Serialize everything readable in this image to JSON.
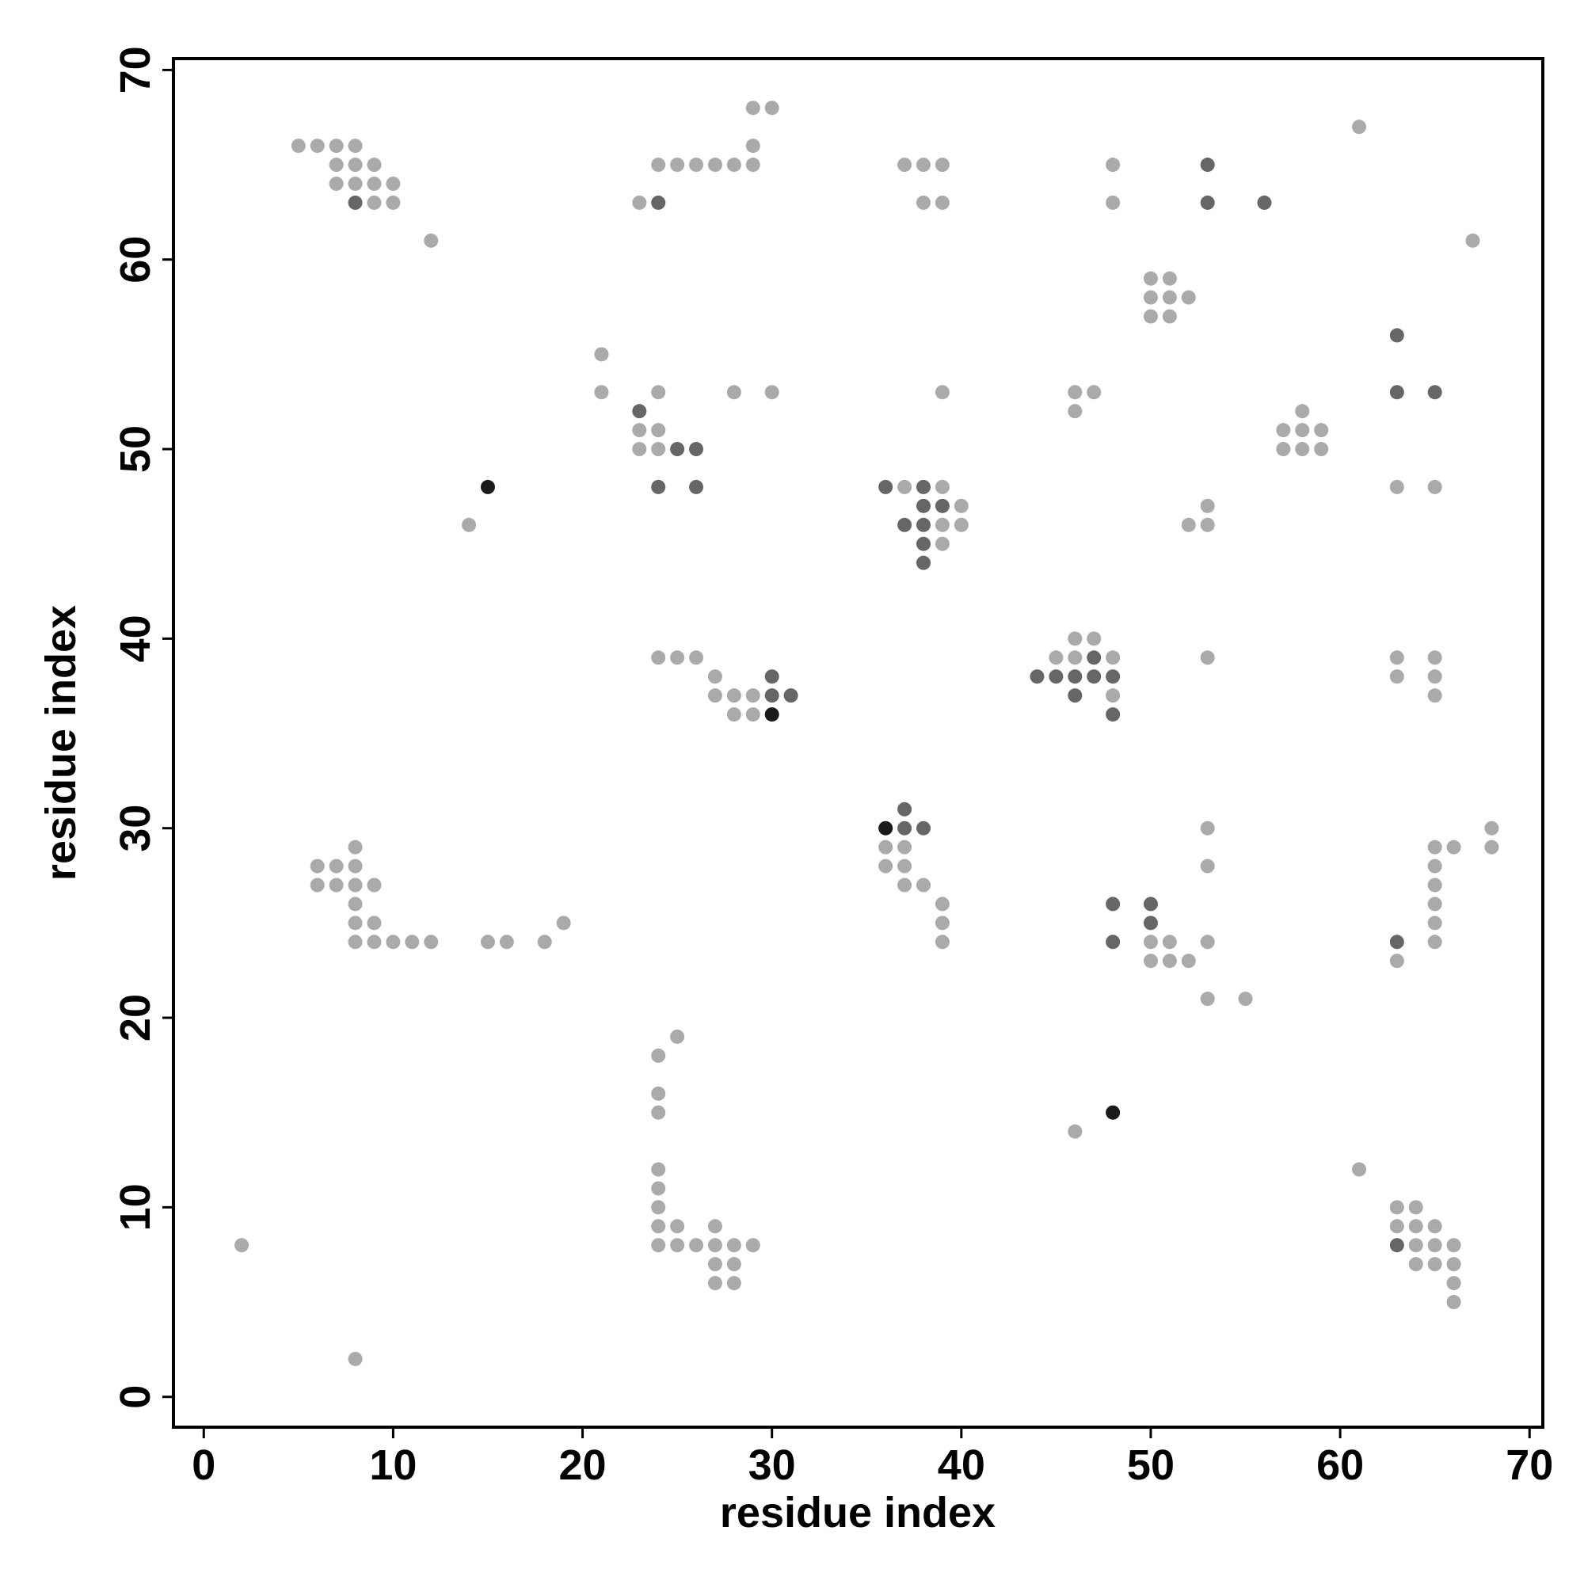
{
  "chart_data": {
    "type": "scatter",
    "xlabel": "residue index",
    "ylabel": "residue index",
    "xlim": [
      -1.6,
      70.7
    ],
    "ylim": [
      -1.6,
      70.6
    ],
    "xticks": [
      0,
      10,
      20,
      30,
      40,
      50,
      60,
      70
    ],
    "yticks": [
      0,
      10,
      20,
      30,
      40,
      50,
      60,
      70
    ],
    "series": [
      {
        "color": "#aaaaaa",
        "x": [
          29,
          30,
          61,
          5,
          6,
          7,
          8,
          29,
          7,
          8,
          9,
          24,
          25,
          26,
          27,
          28,
          29,
          37,
          38,
          39,
          48,
          7,
          8,
          9,
          10,
          9,
          10,
          23,
          38,
          39,
          48,
          12,
          67,
          50,
          51,
          50,
          51,
          52,
          50,
          51,
          21,
          21,
          24,
          28,
          30,
          39,
          46,
          47,
          46,
          58,
          23,
          24,
          57,
          58,
          59,
          23,
          24,
          57,
          58,
          59,
          37,
          39,
          63,
          65,
          40,
          53,
          14,
          39,
          40,
          52,
          53,
          39,
          46,
          47,
          24,
          25,
          26,
          45,
          46,
          48,
          53,
          63,
          65,
          27,
          63,
          65,
          27,
          28,
          29,
          48,
          65,
          28,
          29,
          53,
          68,
          8,
          36,
          37,
          65,
          66,
          68,
          6,
          7,
          8,
          36,
          37,
          53,
          65,
          6,
          7,
          8,
          9,
          37,
          38,
          65,
          8,
          39,
          65,
          8,
          9,
          19,
          39,
          65,
          8,
          9,
          10,
          11,
          12,
          15,
          16,
          18,
          39,
          50,
          51,
          53,
          65,
          50,
          51,
          52,
          63,
          53,
          55,
          25,
          24,
          24,
          24,
          46,
          24,
          61,
          24,
          24,
          63,
          64,
          24,
          25,
          27,
          63,
          64,
          65,
          2,
          24,
          25,
          26,
          27,
          28,
          29,
          64,
          65,
          66,
          27,
          28,
          64,
          65,
          66,
          27,
          28,
          66,
          66,
          8
        ],
        "y": [
          68,
          68,
          67,
          66,
          66,
          66,
          66,
          66,
          65,
          65,
          65,
          65,
          65,
          65,
          65,
          65,
          65,
          65,
          65,
          65,
          65,
          64,
          64,
          64,
          64,
          63,
          63,
          63,
          63,
          63,
          63,
          61,
          61,
          59,
          59,
          58,
          58,
          58,
          57,
          57,
          55,
          53,
          53,
          53,
          53,
          53,
          53,
          53,
          52,
          52,
          51,
          51,
          51,
          51,
          51,
          50,
          50,
          50,
          50,
          50,
          48,
          48,
          48,
          48,
          47,
          47,
          46,
          46,
          46,
          46,
          46,
          45,
          40,
          40,
          39,
          39,
          39,
          39,
          39,
          39,
          39,
          39,
          39,
          38,
          38,
          38,
          37,
          37,
          37,
          37,
          37,
          36,
          36,
          30,
          30,
          29,
          29,
          29,
          29,
          29,
          29,
          28,
          28,
          28,
          28,
          28,
          28,
          28,
          27,
          27,
          27,
          27,
          27,
          27,
          27,
          26,
          26,
          26,
          25,
          25,
          25,
          25,
          25,
          24,
          24,
          24,
          24,
          24,
          24,
          24,
          24,
          24,
          24,
          24,
          24,
          24,
          23,
          23,
          23,
          23,
          21,
          21,
          19,
          18,
          16,
          15,
          14,
          12,
          12,
          11,
          10,
          10,
          10,
          9,
          9,
          9,
          9,
          9,
          9,
          8,
          8,
          8,
          8,
          8,
          8,
          8,
          8,
          8,
          8,
          7,
          7,
          7,
          7,
          7,
          6,
          6,
          6,
          5,
          2
        ]
      },
      {
        "color": "#666666",
        "x": [
          53,
          8,
          24,
          53,
          56,
          63,
          63,
          65,
          23,
          25,
          26,
          24,
          26,
          36,
          38,
          38,
          39,
          37,
          38,
          38,
          38,
          47,
          30,
          44,
          45,
          46,
          47,
          48,
          30,
          31,
          46,
          48,
          37,
          37,
          38,
          48,
          50,
          50,
          48,
          63,
          63
        ],
        "y": [
          65,
          63,
          63,
          63,
          63,
          56,
          53,
          53,
          52,
          50,
          50,
          48,
          48,
          48,
          48,
          47,
          47,
          46,
          46,
          45,
          44,
          39,
          38,
          38,
          38,
          38,
          38,
          38,
          37,
          37,
          37,
          36,
          31,
          30,
          30,
          26,
          26,
          25,
          24,
          24,
          8
        ]
      },
      {
        "color": "#1a1a1a",
        "x": [
          15,
          30,
          36,
          48
        ],
        "y": [
          48,
          36,
          30,
          15
        ]
      }
    ]
  }
}
